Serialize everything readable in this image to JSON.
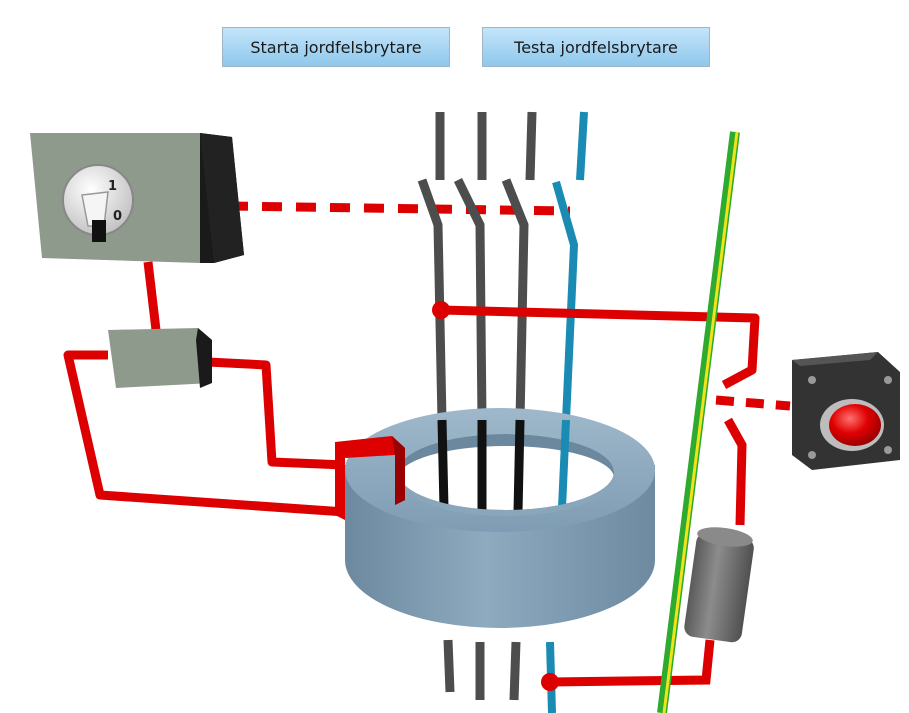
{
  "buttons": {
    "start_label": "Starta jordfelsbrytare",
    "test_label": "Testa jordfelsbrytare"
  },
  "switch_labels": {
    "on": "1",
    "off": "0"
  },
  "colors": {
    "wire_red": "#dd0000",
    "phase_wire": "#4d4d4d",
    "neutral_wire": "#1a8bb3",
    "earth_green": "#2eaa2e",
    "earth_yellow": "#f0e31a",
    "toroid": "#7f9db4",
    "box_grey": "#8e9a8c",
    "button_red": "#e00000"
  }
}
